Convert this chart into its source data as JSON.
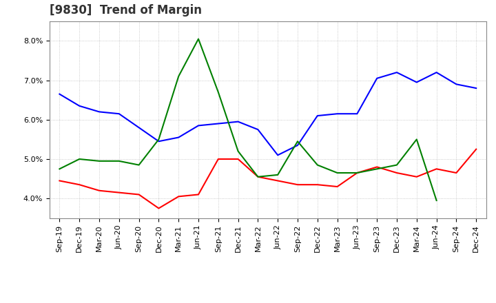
{
  "title": "[9830]  Trend of Margin",
  "x_labels": [
    "Sep-19",
    "Dec-19",
    "Mar-20",
    "Jun-20",
    "Sep-20",
    "Dec-20",
    "Mar-21",
    "Jun-21",
    "Sep-21",
    "Dec-21",
    "Mar-22",
    "Jun-22",
    "Sep-22",
    "Dec-22",
    "Mar-23",
    "Jun-23",
    "Sep-23",
    "Dec-23",
    "Mar-24",
    "Jun-24",
    "Sep-24",
    "Dec-24"
  ],
  "ordinary_income": [
    6.65,
    6.35,
    6.2,
    6.15,
    5.8,
    5.45,
    5.55,
    5.85,
    5.9,
    5.95,
    5.75,
    5.1,
    5.35,
    6.1,
    6.15,
    6.15,
    7.05,
    7.2,
    6.95,
    7.2,
    6.9,
    6.8
  ],
  "net_income": [
    4.45,
    4.35,
    4.2,
    4.15,
    4.1,
    3.75,
    4.05,
    4.1,
    5.0,
    5.0,
    4.55,
    4.45,
    4.35,
    4.35,
    4.3,
    4.65,
    4.8,
    4.65,
    4.55,
    4.75,
    4.65,
    5.25
  ],
  "operating_cashflow": [
    4.75,
    5.0,
    4.95,
    4.95,
    4.85,
    5.5,
    7.1,
    8.05,
    6.7,
    5.2,
    4.55,
    4.6,
    5.45,
    4.85,
    4.65,
    4.65,
    4.75,
    4.85,
    5.5,
    3.95,
    null,
    null
  ],
  "line_colors": {
    "ordinary_income": "#0000ff",
    "net_income": "#ff0000",
    "operating_cashflow": "#008000"
  },
  "ylim": [
    3.5,
    8.5
  ],
  "yticks": [
    4.0,
    5.0,
    6.0,
    7.0,
    8.0
  ],
  "background_color": "#ffffff",
  "grid_color": "#aaaaaa",
  "title_color": "#333333",
  "title_fontsize": 12,
  "tick_fontsize": 8,
  "legend_fontsize": 9
}
